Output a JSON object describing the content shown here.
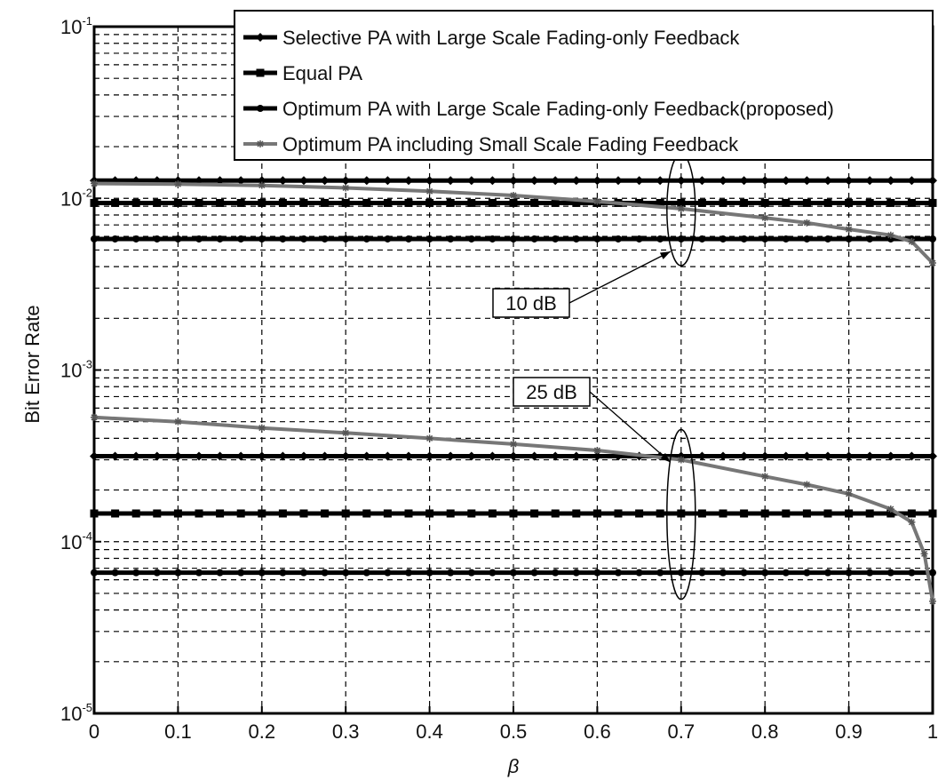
{
  "chart_data": {
    "type": "line",
    "xlabel": "β",
    "ylabel": "Bit Error Rate",
    "xlim": [
      0,
      1
    ],
    "ylim": [
      1e-05,
      0.1
    ],
    "yscale": "log",
    "grid": true,
    "legend_position": "top-right",
    "x_ticks": [
      "0",
      "0.1",
      "0.2",
      "0.3",
      "0.4",
      "0.5",
      "0.6",
      "0.7",
      "0.8",
      "0.9",
      "1"
    ],
    "y_ticks": [
      {
        "base": "10",
        "exp": "-1",
        "value": 0.1
      },
      {
        "base": "10",
        "exp": "-2",
        "value": 0.01
      },
      {
        "base": "10",
        "exp": "-3",
        "value": 0.001
      },
      {
        "base": "10",
        "exp": "-4",
        "value": 0.0001
      },
      {
        "base": "10",
        "exp": "-5",
        "value": 1e-05
      }
    ],
    "legend": [
      {
        "label": "Selective PA with Large Scale Fading-only Feedback",
        "marker": "diamond"
      },
      {
        "label": "Equal PA",
        "marker": "square"
      },
      {
        "label": "Optimum PA with Large Scale Fading-only Feedback(proposed)",
        "marker": "dot"
      },
      {
        "label": "Optimum PA including Small Scale Fading Feedback",
        "marker": "star"
      }
    ],
    "x": [
      0,
      0.025,
      0.05,
      0.075,
      0.1,
      0.125,
      0.15,
      0.175,
      0.2,
      0.225,
      0.25,
      0.275,
      0.3,
      0.325,
      0.35,
      0.375,
      0.4,
      0.425,
      0.45,
      0.475,
      0.5,
      0.525,
      0.55,
      0.575,
      0.6,
      0.625,
      0.65,
      0.675,
      0.7,
      0.725,
      0.75,
      0.775,
      0.8,
      0.825,
      0.85,
      0.875,
      0.9,
      0.925,
      0.95,
      0.975,
      1
    ],
    "series": [
      {
        "group": "10 dB",
        "legend_index": 0,
        "marker": "diamond",
        "constant": 0.0127
      },
      {
        "group": "10 dB",
        "legend_index": 1,
        "marker": "square",
        "constant": 0.0094
      },
      {
        "group": "10 dB",
        "legend_index": 2,
        "marker": "dot",
        "constant": 0.0058
      },
      {
        "group": "10 dB",
        "legend_index": 3,
        "marker": "star",
        "points": [
          [
            0,
            0.0122
          ],
          [
            0.1,
            0.0121
          ],
          [
            0.2,
            0.0119
          ],
          [
            0.3,
            0.0115
          ],
          [
            0.4,
            0.011
          ],
          [
            0.5,
            0.0104
          ],
          [
            0.6,
            0.0096
          ],
          [
            0.7,
            0.0087
          ],
          [
            0.8,
            0.0077
          ],
          [
            0.85,
            0.0072
          ],
          [
            0.9,
            0.0066
          ],
          [
            0.95,
            0.0061
          ],
          [
            0.975,
            0.0056
          ],
          [
            1,
            0.0042
          ]
        ]
      },
      {
        "group": "25 dB",
        "legend_index": 0,
        "marker": "diamond",
        "constant": 0.000315
      },
      {
        "group": "25 dB",
        "legend_index": 1,
        "marker": "square",
        "constant": 0.000146
      },
      {
        "group": "25 dB",
        "legend_index": 2,
        "marker": "dot",
        "constant": 6.6e-05
      },
      {
        "group": "25 dB",
        "legend_index": 3,
        "marker": "star",
        "points": [
          [
            0,
            0.00053
          ],
          [
            0.1,
            0.0005
          ],
          [
            0.2,
            0.00046
          ],
          [
            0.3,
            0.00043
          ],
          [
            0.4,
            0.0004
          ],
          [
            0.5,
            0.00037
          ],
          [
            0.6,
            0.00034
          ],
          [
            0.7,
            0.0003
          ],
          [
            0.8,
            0.00024
          ],
          [
            0.85,
            0.000215
          ],
          [
            0.9,
            0.00019
          ],
          [
            0.95,
            0.000155
          ],
          [
            0.975,
            0.00013
          ],
          [
            0.99,
            8.5e-05
          ],
          [
            1,
            4.5e-05
          ]
        ]
      }
    ],
    "annotations": [
      {
        "text": "10 dB",
        "target_x": 0.7,
        "target_y": 0.0049
      },
      {
        "text": "25 dB",
        "target_x": 0.7,
        "target_y": 0.00029
      }
    ]
  }
}
